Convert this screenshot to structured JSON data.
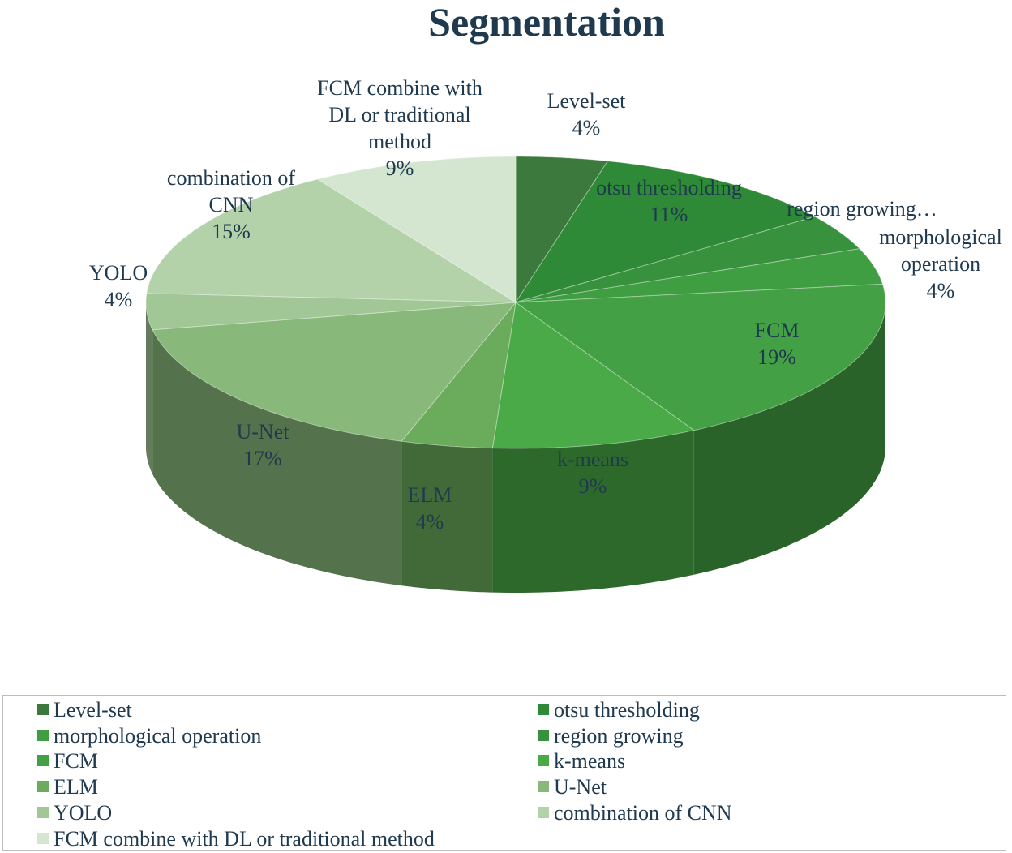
{
  "chart_data": {
    "type": "pie",
    "title": "Segmentation",
    "slices": [
      {
        "label": "Level-set",
        "value": 4,
        "display": "4%",
        "color": "#3b7a3c"
      },
      {
        "label": "otsu thresholding",
        "value": 11,
        "display": "11%",
        "color": "#2e8a36"
      },
      {
        "label": "region growing",
        "value": 4,
        "display": "",
        "color": "#38913d"
      },
      {
        "label": "morphological operation",
        "value": 4,
        "display": "4%",
        "color": "#3f9d42"
      },
      {
        "label": "FCM",
        "value": 19,
        "display": "19%",
        "color": "#44a044"
      },
      {
        "label": "k-means",
        "value": 9,
        "display": "9%",
        "color": "#4aaa47"
      },
      {
        "label": "ELM",
        "value": 4,
        "display": "4%",
        "color": "#6aab5c"
      },
      {
        "label": "U-Net",
        "value": 17,
        "display": "17%",
        "color": "#88b97a"
      },
      {
        "label": "YOLO",
        "value": 4,
        "display": "4%",
        "color": "#a1c796"
      },
      {
        "label": "combination of CNN",
        "value": 15,
        "display": "15%",
        "color": "#b3d2aa"
      },
      {
        "label": "FCM combine with DL or traditional method",
        "value": 9,
        "display": "9%",
        "color": "#d4e6cf"
      }
    ],
    "data_labels": [
      {
        "lines": [
          "Level-set",
          "4%"
        ]
      },
      {
        "lines": [
          "otsu thresholding",
          "11%"
        ]
      },
      {
        "lines": [
          "region growing…"
        ]
      },
      {
        "lines": [
          "morphological",
          "operation",
          "4%"
        ]
      },
      {
        "lines": [
          "FCM",
          "19%"
        ]
      },
      {
        "lines": [
          "k-means",
          "9%"
        ]
      },
      {
        "lines": [
          "ELM",
          "4%"
        ]
      },
      {
        "lines": [
          "U-Net",
          "17%"
        ]
      },
      {
        "lines": [
          "YOLO",
          "4%"
        ]
      },
      {
        "lines": [
          "combination of",
          "CNN",
          "15%"
        ]
      },
      {
        "lines": [
          "FCM combine with",
          "DL or traditional",
          "method",
          "9%"
        ]
      }
    ],
    "legend": {
      "placement": "bottom",
      "items": [
        "Level-set",
        "otsu thresholding",
        "morphological operation",
        "region growing",
        "FCM",
        "k-means",
        "ELM",
        "U-Net",
        "YOLO",
        "combination of CNN",
        "FCM combine with DL or traditional method"
      ],
      "colors": [
        "#3b7a3c",
        "#2e8a36",
        "#3f9d42",
        "#38913d",
        "#44a044",
        "#4aaa47",
        "#6aab5c",
        "#88b97a",
        "#a1c796",
        "#b3d2aa",
        "#d4e6cf"
      ]
    }
  }
}
